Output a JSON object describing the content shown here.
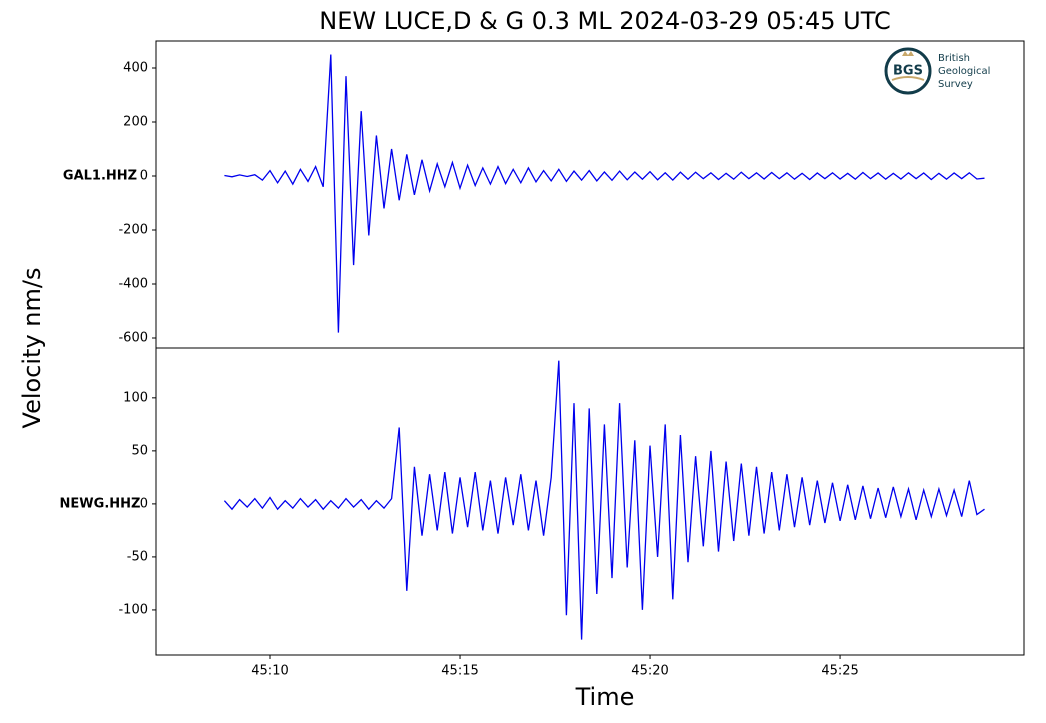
{
  "chart_data": {
    "type": "line",
    "title": "NEW LUCE,D & G 0.3 ML   2024-03-29 05:45 UTC",
    "xlabel": "Time",
    "ylabel": "Velocity nm/s",
    "xlim": [
      7.0,
      29.84
    ],
    "xticks": [
      {
        "value": 10,
        "label": "45:10"
      },
      {
        "value": 15,
        "label": "45:15"
      },
      {
        "value": 20,
        "label": "45:20"
      },
      {
        "value": 25,
        "label": "45:25"
      }
    ],
    "x": [
      8.8,
      9,
      9.2,
      9.4,
      9.6,
      9.8,
      10,
      10.2,
      10.4,
      10.6,
      10.8,
      11,
      11.2,
      11.4,
      11.6,
      11.8,
      12,
      12.2,
      12.4,
      12.6,
      12.8,
      13,
      13.2,
      13.4,
      13.6,
      13.8,
      14,
      14.2,
      14.4,
      14.6,
      14.8,
      15,
      15.2,
      15.4,
      15.6,
      15.8,
      16,
      16.2,
      16.4,
      16.6,
      16.8,
      17,
      17.2,
      17.4,
      17.6,
      17.8,
      18,
      18.2,
      18.4,
      18.6,
      18.8,
      19,
      19.2,
      19.4,
      19.6,
      19.8,
      20,
      20.2,
      20.4,
      20.6,
      20.8,
      21,
      21.2,
      21.4,
      21.6,
      21.8,
      22,
      22.2,
      22.4,
      22.6,
      22.8,
      23,
      23.2,
      23.4,
      23.6,
      23.8,
      24,
      24.2,
      24.4,
      24.6,
      24.8,
      25,
      25.2,
      25.4,
      25.6,
      25.8,
      26,
      26.2,
      26.4,
      26.6,
      26.8,
      27,
      27.2,
      27.4,
      27.6,
      27.8,
      28,
      28.2,
      28.4,
      28.6,
      28.8
    ],
    "panels": [
      {
        "ylim": [
          -637,
          500
        ],
        "yticks": [
          -600,
          -400,
          -200,
          0,
          200,
          400
        ],
        "series": [
          {
            "name": "GAL1.HHZ",
            "color": "#0000ee",
            "values": [
              2,
              -3,
              4,
              -2,
              5,
              -15,
              20,
              -25,
              18,
              -30,
              25,
              -20,
              35,
              -40,
              450,
              -580,
              370,
              -330,
              240,
              -220,
              150,
              -120,
              100,
              -90,
              80,
              -70,
              60,
              -55,
              45,
              -40,
              50,
              -45,
              40,
              -35,
              30,
              -30,
              35,
              -28,
              25,
              -25,
              30,
              -22,
              20,
              -18,
              25,
              -20,
              18,
              -15,
              20,
              -18,
              15,
              -16,
              18,
              -14,
              15,
              -12,
              16,
              -14,
              12,
              -15,
              14,
              -12,
              14,
              -10,
              12,
              -13,
              10,
              -12,
              14,
              -10,
              12,
              -11,
              13,
              -10,
              12,
              -12,
              10,
              -13,
              11,
              -10,
              12,
              -11,
              10,
              -12,
              13,
              -10,
              11,
              -12,
              10,
              -11,
              12,
              -10,
              11,
              -13,
              10,
              -12,
              11,
              -10,
              12,
              -11,
              -8
            ]
          }
        ]
      },
      {
        "ylim": [
          -142.5,
          147
        ],
        "yticks": [
          -100,
          -50,
          0,
          50,
          100
        ],
        "series": [
          {
            "name": "NEWG.HHZ",
            "color": "#0000ee",
            "values": [
              3,
              -5,
              4,
              -3,
              5,
              -4,
              6,
              -5,
              3,
              -4,
              5,
              -3,
              4,
              -5,
              3,
              -4,
              5,
              -3,
              4,
              -5,
              3,
              -4,
              5,
              72,
              -82,
              35,
              -30,
              28,
              -25,
              30,
              -28,
              25,
              -22,
              30,
              -25,
              22,
              -28,
              25,
              -20,
              28,
              -25,
              22,
              -30,
              25,
              135,
              -105,
              95,
              -128,
              90,
              -85,
              75,
              -70,
              95,
              -60,
              60,
              -100,
              55,
              -50,
              75,
              -90,
              65,
              -55,
              45,
              -40,
              50,
              -45,
              40,
              -35,
              38,
              -30,
              35,
              -28,
              30,
              -25,
              28,
              -22,
              25,
              -20,
              22,
              -18,
              20,
              -16,
              18,
              -15,
              17,
              -14,
              15,
              -13,
              16,
              -12,
              14,
              -15,
              13,
              -12,
              14,
              -11,
              13,
              -12,
              22,
              -10,
              -5
            ]
          }
        ]
      }
    ]
  },
  "logo": {
    "abbr": "BGS",
    "lines": [
      "British",
      "Geological",
      "Survey"
    ]
  }
}
